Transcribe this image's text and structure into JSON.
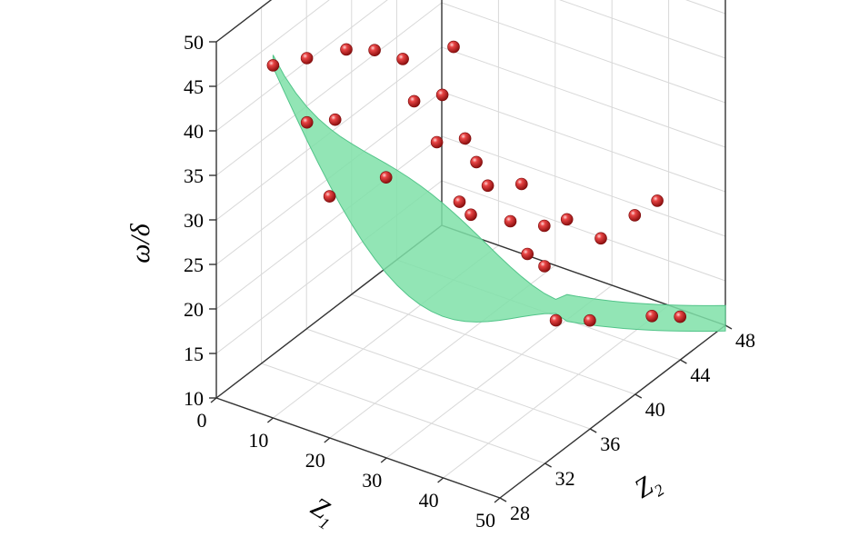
{
  "chart_data": {
    "type": "scatter",
    "subtype": "3d-scatter-with-fitted-surface",
    "xlabel": "Z",
    "xlabel_sub": "1",
    "ylabel": "Z",
    "ylabel_sub": "2",
    "zlabel": "ω/δ",
    "xlim": [
      0,
      50
    ],
    "ylim": [
      28,
      48
    ],
    "zlim": [
      10,
      50
    ],
    "x_ticks": [
      "0",
      "10",
      "20",
      "30",
      "40",
      "50"
    ],
    "y_ticks": [
      "28",
      "32",
      "36",
      "40",
      "44",
      "48"
    ],
    "z_ticks": [
      "10",
      "15",
      "20",
      "25",
      "30",
      "35",
      "40",
      "45",
      "50"
    ],
    "grid": true,
    "colors": {
      "points": "#d42a2a",
      "surface": "#7fe0a8",
      "surface_edge": "#52c489"
    },
    "surface": {
      "fit": "ω/δ ≈ f(Z1, Z2)",
      "x_range": [
        10,
        50
      ],
      "y_range": [
        28,
        48
      ]
    },
    "points": [
      {
        "x": 10,
        "y": 28,
        "z": 49.6
      },
      {
        "x": 10,
        "y": 31,
        "z": 47.5
      },
      {
        "x": 11,
        "y": 34,
        "z": 45.8
      },
      {
        "x": 12,
        "y": 36,
        "z": 44.0
      },
      {
        "x": 12,
        "y": 30,
        "z": 41.7
      },
      {
        "x": 13,
        "y": 38,
        "z": 41.3
      },
      {
        "x": 13,
        "y": 32,
        "z": 40.3
      },
      {
        "x": 14,
        "y": 42,
        "z": 39.0
      },
      {
        "x": 15,
        "y": 38,
        "z": 37.0
      },
      {
        "x": 16,
        "y": 40,
        "z": 36.0
      },
      {
        "x": 16,
        "y": 30,
        "z": 34.3
      },
      {
        "x": 18,
        "y": 34,
        "z": 33.0
      },
      {
        "x": 19,
        "y": 38,
        "z": 33.3
      },
      {
        "x": 20,
        "y": 40,
        "z": 32.0
      },
      {
        "x": 22,
        "y": 40,
        "z": 29.8
      },
      {
        "x": 23,
        "y": 38,
        "z": 27.5
      },
      {
        "x": 24,
        "y": 40,
        "z": 27.6
      },
      {
        "x": 25,
        "y": 38,
        "z": 26.5
      },
      {
        "x": 26,
        "y": 42,
        "z": 26.3
      },
      {
        "x": 28,
        "y": 40,
        "z": 24.5
      },
      {
        "x": 30,
        "y": 42,
        "z": 22.5
      },
      {
        "x": 31,
        "y": 40,
        "z": 21.5
      },
      {
        "x": 32,
        "y": 43,
        "z": 22.7
      },
      {
        "x": 34,
        "y": 40,
        "z": 20.8
      },
      {
        "x": 36,
        "y": 44,
        "z": 20.5
      },
      {
        "x": 38,
        "y": 46,
        "z": 21.6
      },
      {
        "x": 38,
        "y": 48,
        "z": 21.3
      },
      {
        "x": 40,
        "y": 38,
        "z": 18.0
      },
      {
        "x": 42,
        "y": 40,
        "z": 16.5
      },
      {
        "x": 45,
        "y": 44,
        "z": 13.8
      },
      {
        "x": 46,
        "y": 46,
        "z": 12.0
      }
    ]
  }
}
